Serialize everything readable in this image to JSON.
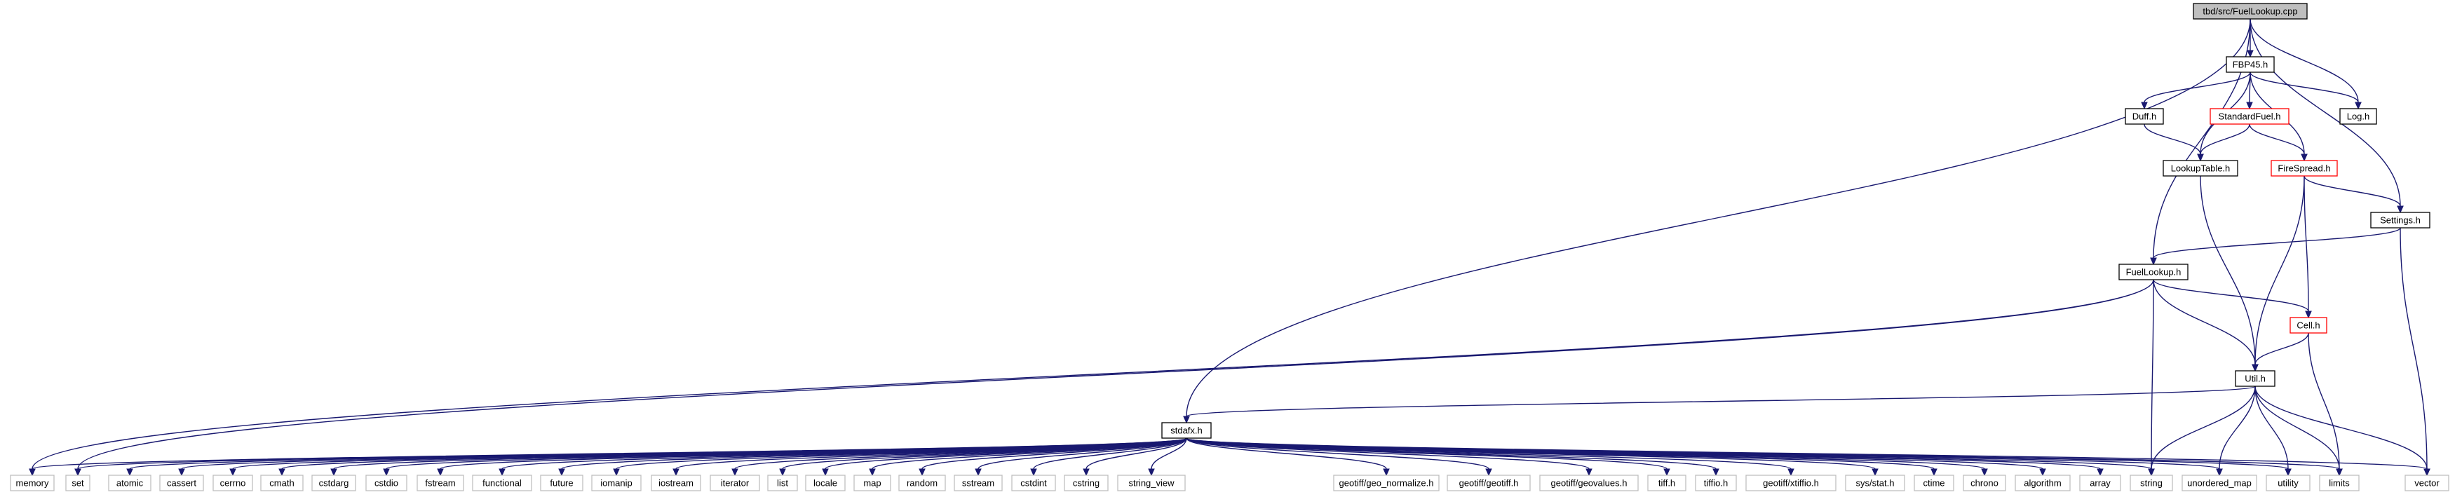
{
  "diagram": {
    "type": "include-dependency-graph",
    "colors": {
      "edge": "#191970",
      "root_fill": "#bfbfbf",
      "node_border": "#000000",
      "system_border": "#bfbfbf",
      "truncated_border": "#ff0000"
    },
    "nodes": [
      {
        "id": "root",
        "label": "tbd/src/FuelLookup.cpp",
        "kind": "root"
      },
      {
        "id": "fbp45",
        "label": "FBP45.h",
        "kind": "normal"
      },
      {
        "id": "duff",
        "label": "Duff.h",
        "kind": "normal"
      },
      {
        "id": "standardfuel",
        "label": "StandardFuel.h",
        "kind": "truncated"
      },
      {
        "id": "log",
        "label": "Log.h",
        "kind": "normal"
      },
      {
        "id": "lookuptable",
        "label": "LookupTable.h",
        "kind": "normal"
      },
      {
        "id": "firespread",
        "label": "FireSpread.h",
        "kind": "truncated"
      },
      {
        "id": "settings",
        "label": "Settings.h",
        "kind": "normal"
      },
      {
        "id": "fuellookup",
        "label": "FuelLookup.h",
        "kind": "normal"
      },
      {
        "id": "cell",
        "label": "Cell.h",
        "kind": "truncated"
      },
      {
        "id": "util",
        "label": "Util.h",
        "kind": "normal"
      },
      {
        "id": "stdafx",
        "label": "stdafx.h",
        "kind": "normal"
      },
      {
        "id": "memory",
        "label": "memory",
        "kind": "system"
      },
      {
        "id": "set",
        "label": "set",
        "kind": "system"
      },
      {
        "id": "atomic",
        "label": "atomic",
        "kind": "system"
      },
      {
        "id": "cassert",
        "label": "cassert",
        "kind": "system"
      },
      {
        "id": "cerrno",
        "label": "cerrno",
        "kind": "system"
      },
      {
        "id": "cmath",
        "label": "cmath",
        "kind": "system"
      },
      {
        "id": "cstdarg",
        "label": "cstdarg",
        "kind": "system"
      },
      {
        "id": "cstdio",
        "label": "cstdio",
        "kind": "system"
      },
      {
        "id": "fstream",
        "label": "fstream",
        "kind": "system"
      },
      {
        "id": "functional",
        "label": "functional",
        "kind": "system"
      },
      {
        "id": "future",
        "label": "future",
        "kind": "system"
      },
      {
        "id": "iomanip",
        "label": "iomanip",
        "kind": "system"
      },
      {
        "id": "iostream",
        "label": "iostream",
        "kind": "system"
      },
      {
        "id": "iterator",
        "label": "iterator",
        "kind": "system"
      },
      {
        "id": "list",
        "label": "list",
        "kind": "system"
      },
      {
        "id": "locale",
        "label": "locale",
        "kind": "system"
      },
      {
        "id": "map",
        "label": "map",
        "kind": "system"
      },
      {
        "id": "random",
        "label": "random",
        "kind": "system"
      },
      {
        "id": "sstream",
        "label": "sstream",
        "kind": "system"
      },
      {
        "id": "cstdint",
        "label": "cstdint",
        "kind": "system"
      },
      {
        "id": "cstring",
        "label": "cstring",
        "kind": "system"
      },
      {
        "id": "string_view",
        "label": "string_view",
        "kind": "system"
      },
      {
        "id": "geo_normalize",
        "label": "geotiff/geo_normalize.h",
        "kind": "system"
      },
      {
        "id": "geotiff_h",
        "label": "geotiff/geotiff.h",
        "kind": "system"
      },
      {
        "id": "geovalues",
        "label": "geotiff/geovalues.h",
        "kind": "system"
      },
      {
        "id": "tiff_h",
        "label": "tiff.h",
        "kind": "system"
      },
      {
        "id": "tiffio_h",
        "label": "tiffio.h",
        "kind": "system"
      },
      {
        "id": "xtiffio",
        "label": "geotiff/xtiffio.h",
        "kind": "system"
      },
      {
        "id": "sysstat",
        "label": "sys/stat.h",
        "kind": "system"
      },
      {
        "id": "ctime",
        "label": "ctime",
        "kind": "system"
      },
      {
        "id": "chrono",
        "label": "chrono",
        "kind": "system"
      },
      {
        "id": "algorithm",
        "label": "algorithm",
        "kind": "system"
      },
      {
        "id": "array",
        "label": "array",
        "kind": "system"
      },
      {
        "id": "string",
        "label": "string",
        "kind": "system"
      },
      {
        "id": "unordered_map",
        "label": "unordered_map",
        "kind": "system"
      },
      {
        "id": "utility",
        "label": "utility",
        "kind": "system"
      },
      {
        "id": "limits",
        "label": "limits",
        "kind": "system"
      },
      {
        "id": "vector",
        "label": "vector",
        "kind": "system"
      }
    ],
    "edges": [
      [
        "root",
        "fbp45"
      ],
      [
        "root",
        "log"
      ],
      [
        "root",
        "settings"
      ],
      [
        "root",
        "fuellookup"
      ],
      [
        "root",
        "stdafx"
      ],
      [
        "fbp45",
        "duff"
      ],
      [
        "fbp45",
        "standardfuel"
      ],
      [
        "fbp45",
        "log"
      ],
      [
        "fbp45",
        "lookuptable"
      ],
      [
        "fbp45",
        "firespread"
      ],
      [
        "duff",
        "lookuptable"
      ],
      [
        "standardfuel",
        "lookuptable"
      ],
      [
        "standardfuel",
        "firespread"
      ],
      [
        "lookuptable",
        "util"
      ],
      [
        "firespread",
        "settings"
      ],
      [
        "firespread",
        "cell"
      ],
      [
        "firespread",
        "util"
      ],
      [
        "settings",
        "fuellookup"
      ],
      [
        "settings",
        "vector"
      ],
      [
        "fuellookup",
        "cell"
      ],
      [
        "fuellookup",
        "util"
      ],
      [
        "fuellookup",
        "memory"
      ],
      [
        "fuellookup",
        "set"
      ],
      [
        "fuellookup",
        "string"
      ],
      [
        "cell",
        "util"
      ],
      [
        "cell",
        "limits"
      ],
      [
        "util",
        "stdafx"
      ],
      [
        "util",
        "string"
      ],
      [
        "util",
        "unordered_map"
      ],
      [
        "util",
        "utility"
      ],
      [
        "util",
        "limits"
      ],
      [
        "util",
        "vector"
      ],
      [
        "stdafx",
        "memory"
      ],
      [
        "stdafx",
        "set"
      ],
      [
        "stdafx",
        "atomic"
      ],
      [
        "stdafx",
        "cassert"
      ],
      [
        "stdafx",
        "cerrno"
      ],
      [
        "stdafx",
        "cmath"
      ],
      [
        "stdafx",
        "cstdarg"
      ],
      [
        "stdafx",
        "cstdio"
      ],
      [
        "stdafx",
        "fstream"
      ],
      [
        "stdafx",
        "functional"
      ],
      [
        "stdafx",
        "future"
      ],
      [
        "stdafx",
        "iomanip"
      ],
      [
        "stdafx",
        "iostream"
      ],
      [
        "stdafx",
        "iterator"
      ],
      [
        "stdafx",
        "list"
      ],
      [
        "stdafx",
        "locale"
      ],
      [
        "stdafx",
        "map"
      ],
      [
        "stdafx",
        "random"
      ],
      [
        "stdafx",
        "sstream"
      ],
      [
        "stdafx",
        "cstdint"
      ],
      [
        "stdafx",
        "cstring"
      ],
      [
        "stdafx",
        "string_view"
      ],
      [
        "stdafx",
        "geo_normalize"
      ],
      [
        "stdafx",
        "geotiff_h"
      ],
      [
        "stdafx",
        "geovalues"
      ],
      [
        "stdafx",
        "tiff_h"
      ],
      [
        "stdafx",
        "tiffio_h"
      ],
      [
        "stdafx",
        "xtiffio"
      ],
      [
        "stdafx",
        "sysstat"
      ],
      [
        "stdafx",
        "ctime"
      ],
      [
        "stdafx",
        "chrono"
      ],
      [
        "stdafx",
        "algorithm"
      ],
      [
        "stdafx",
        "array"
      ],
      [
        "stdafx",
        "string"
      ],
      [
        "stdafx",
        "unordered_map"
      ],
      [
        "stdafx",
        "utility"
      ],
      [
        "stdafx",
        "limits"
      ],
      [
        "stdafx",
        "vector"
      ]
    ]
  }
}
